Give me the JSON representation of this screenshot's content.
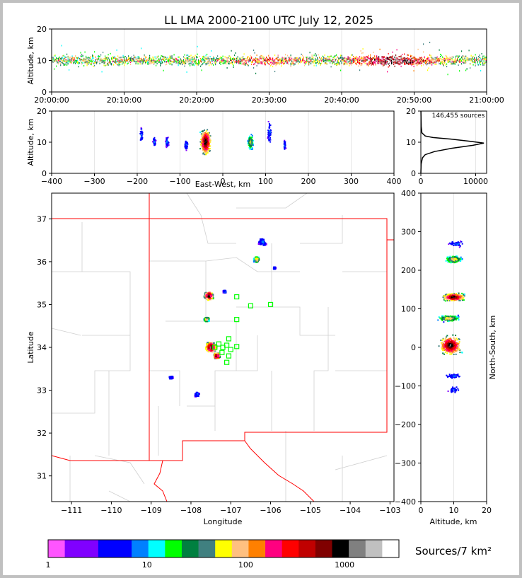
{
  "colors": {
    "scale": [
      "#ff55ff",
      "#8000ff",
      "#8000ff",
      "#0000ff",
      "#0000ff",
      "#0080ff",
      "#00ffff",
      "#00ff00",
      "#008040",
      "#408080",
      "#ffff00",
      "#ffc080",
      "#ff8000",
      "#ff0080",
      "#ff0000",
      "#c00000",
      "#800000",
      "#000000",
      "#808080",
      "#c0c0c0",
      "#ffffff"
    ],
    "network": "#00ff00",
    "border": "#ff0000"
  },
  "chart_data": [
    {
      "type": "scatter",
      "name": "altitude-time",
      "title": "LL LMA 2000-2100 UTC July 12, 2025",
      "ylabel": "Altitude, km",
      "ylim": [
        0,
        20
      ],
      "yticks": [
        "0",
        "10",
        "20"
      ],
      "xticks": [
        "20:00:00",
        "20:10:00",
        "20:20:00",
        "20:30:00",
        "20:40:00",
        "20:50:00",
        "21:00:00"
      ],
      "xlim_minutes": [
        0,
        60
      ],
      "band_altitude_km": [
        6,
        13
      ],
      "peak_altitude_km": 10
    },
    {
      "type": "scatter",
      "name": "east-west-altitude",
      "xlabel": "East-West, km",
      "ylabel": "Altitude, km",
      "xlim": [
        -400,
        400
      ],
      "ylim": [
        0,
        20
      ],
      "xticks": [
        "−400",
        "−300",
        "−200",
        "−100",
        "0",
        "100",
        "200",
        "300",
        "400"
      ],
      "yticks": [
        "0",
        "10",
        "20"
      ],
      "clusters": [
        {
          "x": -40,
          "alt": 10,
          "spread_x": 15,
          "spread_alt": 5,
          "density": "high"
        },
        {
          "x": 65,
          "alt": 10,
          "spread_x": 8,
          "spread_alt": 3,
          "density": "medium"
        },
        {
          "x": 110,
          "alt": 13,
          "spread_x": 6,
          "spread_alt": 4,
          "density": "low"
        },
        {
          "x": -85,
          "alt": 9,
          "spread_x": 5,
          "spread_alt": 2,
          "density": "low"
        },
        {
          "x": -130,
          "alt": 10,
          "spread_x": 5,
          "spread_alt": 2,
          "density": "low"
        },
        {
          "x": -160,
          "alt": 10,
          "spread_x": 4,
          "spread_alt": 2,
          "density": "low"
        },
        {
          "x": -190,
          "alt": 12,
          "spread_x": 4,
          "spread_alt": 3,
          "density": "low"
        },
        {
          "x": 145,
          "alt": 9,
          "spread_x": 3,
          "spread_alt": 2,
          "density": "low"
        }
      ]
    },
    {
      "type": "line",
      "name": "altitude-histogram",
      "annotation": "146,455 sources",
      "xlim": [
        0,
        12000
      ],
      "ylim": [
        0,
        20
      ],
      "xticks": [
        "0",
        "10000"
      ],
      "yticks": [
        "0",
        "10",
        "20"
      ],
      "profile": [
        {
          "alt": 0,
          "count": 0
        },
        {
          "alt": 3,
          "count": 50
        },
        {
          "alt": 5,
          "count": 300
        },
        {
          "alt": 6,
          "count": 800
        },
        {
          "alt": 7,
          "count": 2500
        },
        {
          "alt": 8,
          "count": 5500
        },
        {
          "alt": 9,
          "count": 9500
        },
        {
          "alt": 9.7,
          "count": 11500
        },
        {
          "alt": 10.3,
          "count": 9000
        },
        {
          "alt": 11,
          "count": 5500
        },
        {
          "alt": 11.5,
          "count": 2200
        },
        {
          "alt": 12,
          "count": 800
        },
        {
          "alt": 13,
          "count": 200
        },
        {
          "alt": 15,
          "count": 60
        },
        {
          "alt": 20,
          "count": 10
        }
      ]
    },
    {
      "type": "scatter",
      "name": "plan-view",
      "xlabel": "Longitude",
      "ylabel": "Latitude",
      "xlim": [
        -111.5,
        -102.9
      ],
      "ylim": [
        30.4,
        37.6
      ],
      "xticks": [
        "−111",
        "−110",
        "−109",
        "−108",
        "−107",
        "−106",
        "−105",
        "−104",
        "−103"
      ],
      "yticks": [
        "31",
        "32",
        "33",
        "34",
        "35",
        "36",
        "37"
      ],
      "clusters": [
        {
          "lon": -107.55,
          "lat": 35.2,
          "spread": 0.12,
          "density": "high"
        },
        {
          "lon": -107.5,
          "lat": 34.0,
          "spread": 0.15,
          "density": "high"
        },
        {
          "lon": -107.35,
          "lat": 33.8,
          "spread": 0.08,
          "density": "high"
        },
        {
          "lon": -107.6,
          "lat": 34.65,
          "spread": 0.07,
          "density": "medium"
        },
        {
          "lon": -106.35,
          "lat": 36.05,
          "spread": 0.08,
          "density": "medium"
        },
        {
          "lon": -106.2,
          "lat": 36.45,
          "spread": 0.12,
          "density": "low"
        },
        {
          "lon": -107.85,
          "lat": 32.9,
          "spread": 0.07,
          "density": "low"
        },
        {
          "lon": -108.5,
          "lat": 33.3,
          "spread": 0.05,
          "density": "low"
        },
        {
          "lon": -105.9,
          "lat": 35.85,
          "spread": 0.03,
          "density": "low"
        },
        {
          "lon": -107.15,
          "lat": 35.3,
          "spread": 0.04,
          "density": "low"
        }
      ],
      "stations": [
        {
          "lon": -106.85,
          "lat": 35.18
        },
        {
          "lon": -106.5,
          "lat": 34.97
        },
        {
          "lon": -106.0,
          "lat": 35.0
        },
        {
          "lon": -106.85,
          "lat": 34.65
        },
        {
          "lon": -107.05,
          "lat": 34.2
        },
        {
          "lon": -107.1,
          "lat": 34.05
        },
        {
          "lon": -107.2,
          "lat": 34.0
        },
        {
          "lon": -107.3,
          "lat": 34.08
        },
        {
          "lon": -107.0,
          "lat": 33.95
        },
        {
          "lon": -107.05,
          "lat": 33.8
        },
        {
          "lon": -107.1,
          "lat": 33.65
        },
        {
          "lon": -106.85,
          "lat": 34.02
        },
        {
          "lon": -107.4,
          "lat": 34.0
        },
        {
          "lon": -107.22,
          "lat": 33.88
        }
      ]
    },
    {
      "type": "scatter",
      "name": "altitude-north-south",
      "xlabel": "Altitude, km",
      "ylabel": "North-South, km",
      "xlim": [
        0,
        20
      ],
      "ylim": [
        -400,
        400
      ],
      "xticks": [
        "0",
        "10",
        "20"
      ],
      "yticks": [
        "400",
        "300",
        "200",
        "100",
        "0",
        "−100",
        "−200",
        "−300",
        "−400"
      ],
      "clusters": [
        {
          "ns": 130,
          "alt": 10,
          "spread_ns": 12,
          "spread_alt": 4,
          "density": "high"
        },
        {
          "ns": 5,
          "alt": 9,
          "spread_ns": 30,
          "spread_alt": 4,
          "density": "high"
        },
        {
          "ns": 75,
          "alt": 8.5,
          "spread_ns": 10,
          "spread_alt": 4,
          "density": "medium"
        },
        {
          "ns": 228,
          "alt": 10,
          "spread_ns": 12,
          "spread_alt": 3,
          "density": "medium"
        },
        {
          "ns": 268,
          "alt": 11,
          "spread_ns": 10,
          "spread_alt": 3,
          "density": "low"
        },
        {
          "ns": -110,
          "alt": 10,
          "spread_ns": 12,
          "spread_alt": 2,
          "density": "low"
        },
        {
          "ns": -75,
          "alt": 10,
          "spread_ns": 8,
          "spread_alt": 3,
          "density": "low"
        }
      ]
    },
    {
      "type": "heatmap",
      "name": "colorbar",
      "label": "Sources/7 km²",
      "ticks": [
        "1",
        "10",
        "100",
        "1000"
      ]
    }
  ]
}
